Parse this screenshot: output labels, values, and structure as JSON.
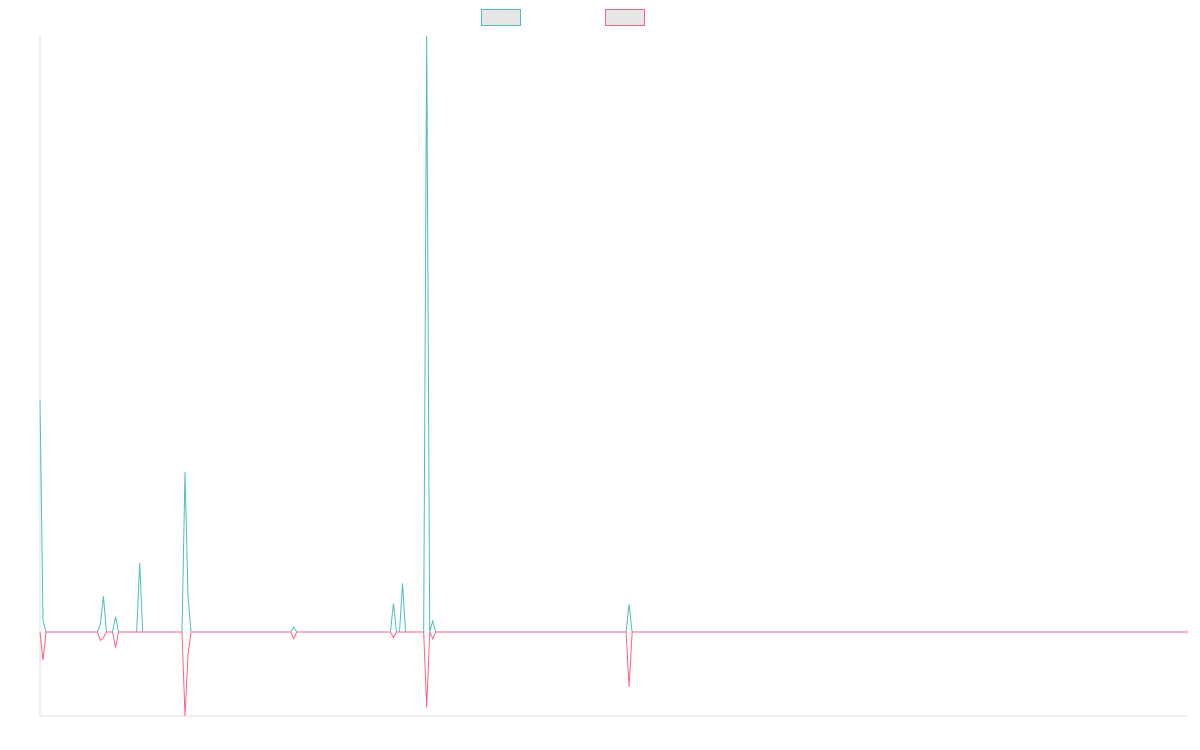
{
  "chart_data": {
    "type": "line",
    "title": "",
    "xlabel": "",
    "ylabel": "",
    "x_range": [
      0,
      380
    ],
    "ylim": [
      -1.5,
      10.8
    ],
    "grid": false,
    "legend_position": "top-center",
    "series": [
      {
        "color": "#4bc0c0",
        "legend_fill": "#e6e6e6",
        "points": [
          [
            0,
            4.2
          ],
          [
            1,
            0.2
          ],
          [
            2,
            0
          ],
          [
            19,
            0
          ],
          [
            20,
            0.15
          ],
          [
            21,
            0.65
          ],
          [
            22,
            0
          ],
          [
            24,
            0
          ],
          [
            25,
            0.28
          ],
          [
            26,
            0
          ],
          [
            32,
            0
          ],
          [
            33,
            1.25
          ],
          [
            34,
            0
          ],
          [
            47,
            0
          ],
          [
            48,
            2.9
          ],
          [
            49,
            0.65
          ],
          [
            50,
            0
          ],
          [
            83,
            0
          ],
          [
            84,
            0.09
          ],
          [
            85,
            0
          ],
          [
            116,
            0
          ],
          [
            117,
            0.52
          ],
          [
            118,
            0
          ],
          [
            119,
            0
          ],
          [
            120,
            0.88
          ],
          [
            121,
            0
          ],
          [
            127,
            0
          ],
          [
            128,
            10.8
          ],
          [
            129,
            0
          ],
          [
            130,
            0.2
          ],
          [
            131,
            0
          ],
          [
            194,
            0
          ],
          [
            195,
            0.5
          ],
          [
            196,
            0
          ],
          [
            380,
            0
          ]
        ]
      },
      {
        "color": "#ff6384",
        "legend_fill": "#e6e6e6",
        "points": [
          [
            0,
            0
          ],
          [
            1,
            -0.5
          ],
          [
            2,
            0
          ],
          [
            19,
            0
          ],
          [
            20,
            -0.15
          ],
          [
            21,
            -0.1
          ],
          [
            22,
            0
          ],
          [
            24,
            0
          ],
          [
            25,
            -0.28
          ],
          [
            26,
            0
          ],
          [
            47,
            0
          ],
          [
            48,
            -1.5
          ],
          [
            49,
            -0.4
          ],
          [
            50,
            0
          ],
          [
            83,
            0
          ],
          [
            84,
            -0.12
          ],
          [
            85,
            0
          ],
          [
            116,
            0
          ],
          [
            117,
            -0.1
          ],
          [
            118,
            0
          ],
          [
            127,
            0
          ],
          [
            128,
            -1.35
          ],
          [
            129,
            0
          ],
          [
            130,
            -0.12
          ],
          [
            131,
            0
          ],
          [
            194,
            0
          ],
          [
            195,
            -0.98
          ],
          [
            196,
            0
          ],
          [
            380,
            0
          ]
        ]
      }
    ]
  }
}
